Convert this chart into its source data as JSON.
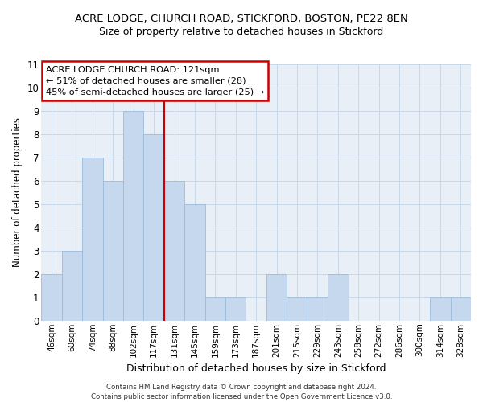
{
  "title": "ACRE LODGE, CHURCH ROAD, STICKFORD, BOSTON, PE22 8EN",
  "subtitle": "Size of property relative to detached houses in Stickford",
  "xlabel": "Distribution of detached houses by size in Stickford",
  "ylabel": "Number of detached properties",
  "bar_labels": [
    "46sqm",
    "60sqm",
    "74sqm",
    "88sqm",
    "102sqm",
    "117sqm",
    "131sqm",
    "145sqm",
    "159sqm",
    "173sqm",
    "187sqm",
    "201sqm",
    "215sqm",
    "229sqm",
    "243sqm",
    "258sqm",
    "272sqm",
    "286sqm",
    "300sqm",
    "314sqm",
    "328sqm"
  ],
  "bar_values": [
    2,
    3,
    7,
    6,
    9,
    8,
    6,
    5,
    1,
    1,
    0,
    2,
    1,
    1,
    2,
    0,
    0,
    0,
    0,
    1,
    1
  ],
  "bar_color": "#c5d8ee",
  "bar_edge_color": "#9bbcd8",
  "vline_x": 5.5,
  "vline_color": "#cc0000",
  "ylim": [
    0,
    11
  ],
  "yticks": [
    0,
    1,
    2,
    3,
    4,
    5,
    6,
    7,
    8,
    9,
    10,
    11
  ],
  "annotation_lines": [
    "ACRE LODGE CHURCH ROAD: 121sqm",
    "← 51% of detached houses are smaller (28)",
    "45% of semi-detached houses are larger (25) →"
  ],
  "footer_line1": "Contains HM Land Registry data © Crown copyright and database right 2024.",
  "footer_line2": "Contains public sector information licensed under the Open Government Licence v3.0.",
  "grid_color": "#c8d8e8",
  "background_color": "#e8eff7"
}
